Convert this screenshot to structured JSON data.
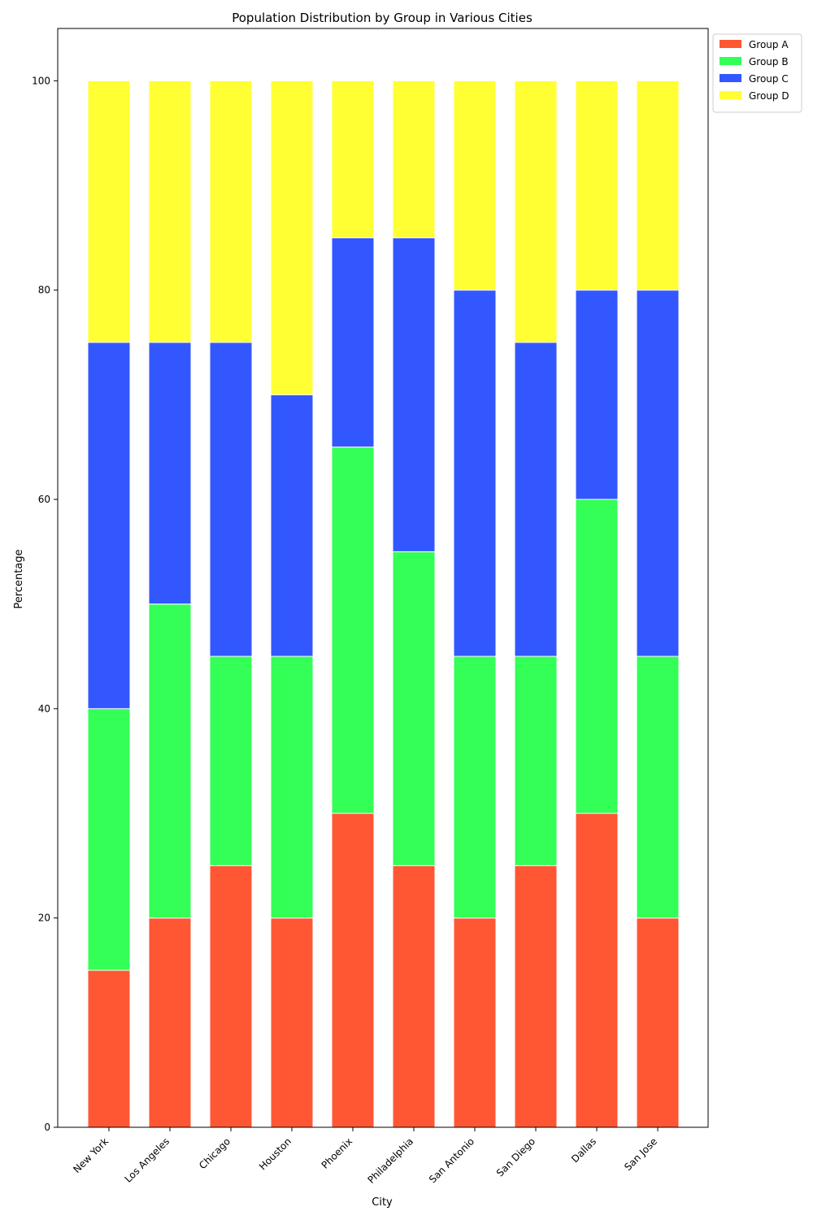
{
  "chart_data": {
    "type": "bar",
    "stacked": true,
    "title": "Population Distribution by Group in Various Cities",
    "xlabel": "City",
    "ylabel": "Percentage",
    "ylim": [
      0,
      105
    ],
    "yticks": [
      0,
      20,
      40,
      60,
      80,
      100
    ],
    "categories": [
      "New York",
      "Los Angeles",
      "Chicago",
      "Houston",
      "Phoenix",
      "Philadelphia",
      "San Antonio",
      "San Diego",
      "Dallas",
      "San Jose"
    ],
    "series": [
      {
        "name": "Group A",
        "color": "#ff5733",
        "values": [
          15,
          20,
          25,
          20,
          30,
          25,
          20,
          25,
          30,
          20
        ]
      },
      {
        "name": "Group B",
        "color": "#33ff57",
        "values": [
          25,
          30,
          20,
          25,
          35,
          30,
          25,
          20,
          30,
          25
        ]
      },
      {
        "name": "Group C",
        "color": "#3357ff",
        "values": [
          35,
          25,
          30,
          25,
          20,
          30,
          35,
          30,
          20,
          35
        ]
      },
      {
        "name": "Group D",
        "color": "#ffff33",
        "values": [
          25,
          25,
          25,
          30,
          15,
          15,
          20,
          25,
          20,
          20
        ]
      }
    ],
    "grid": false,
    "legend_position": "upper-right-outside"
  }
}
